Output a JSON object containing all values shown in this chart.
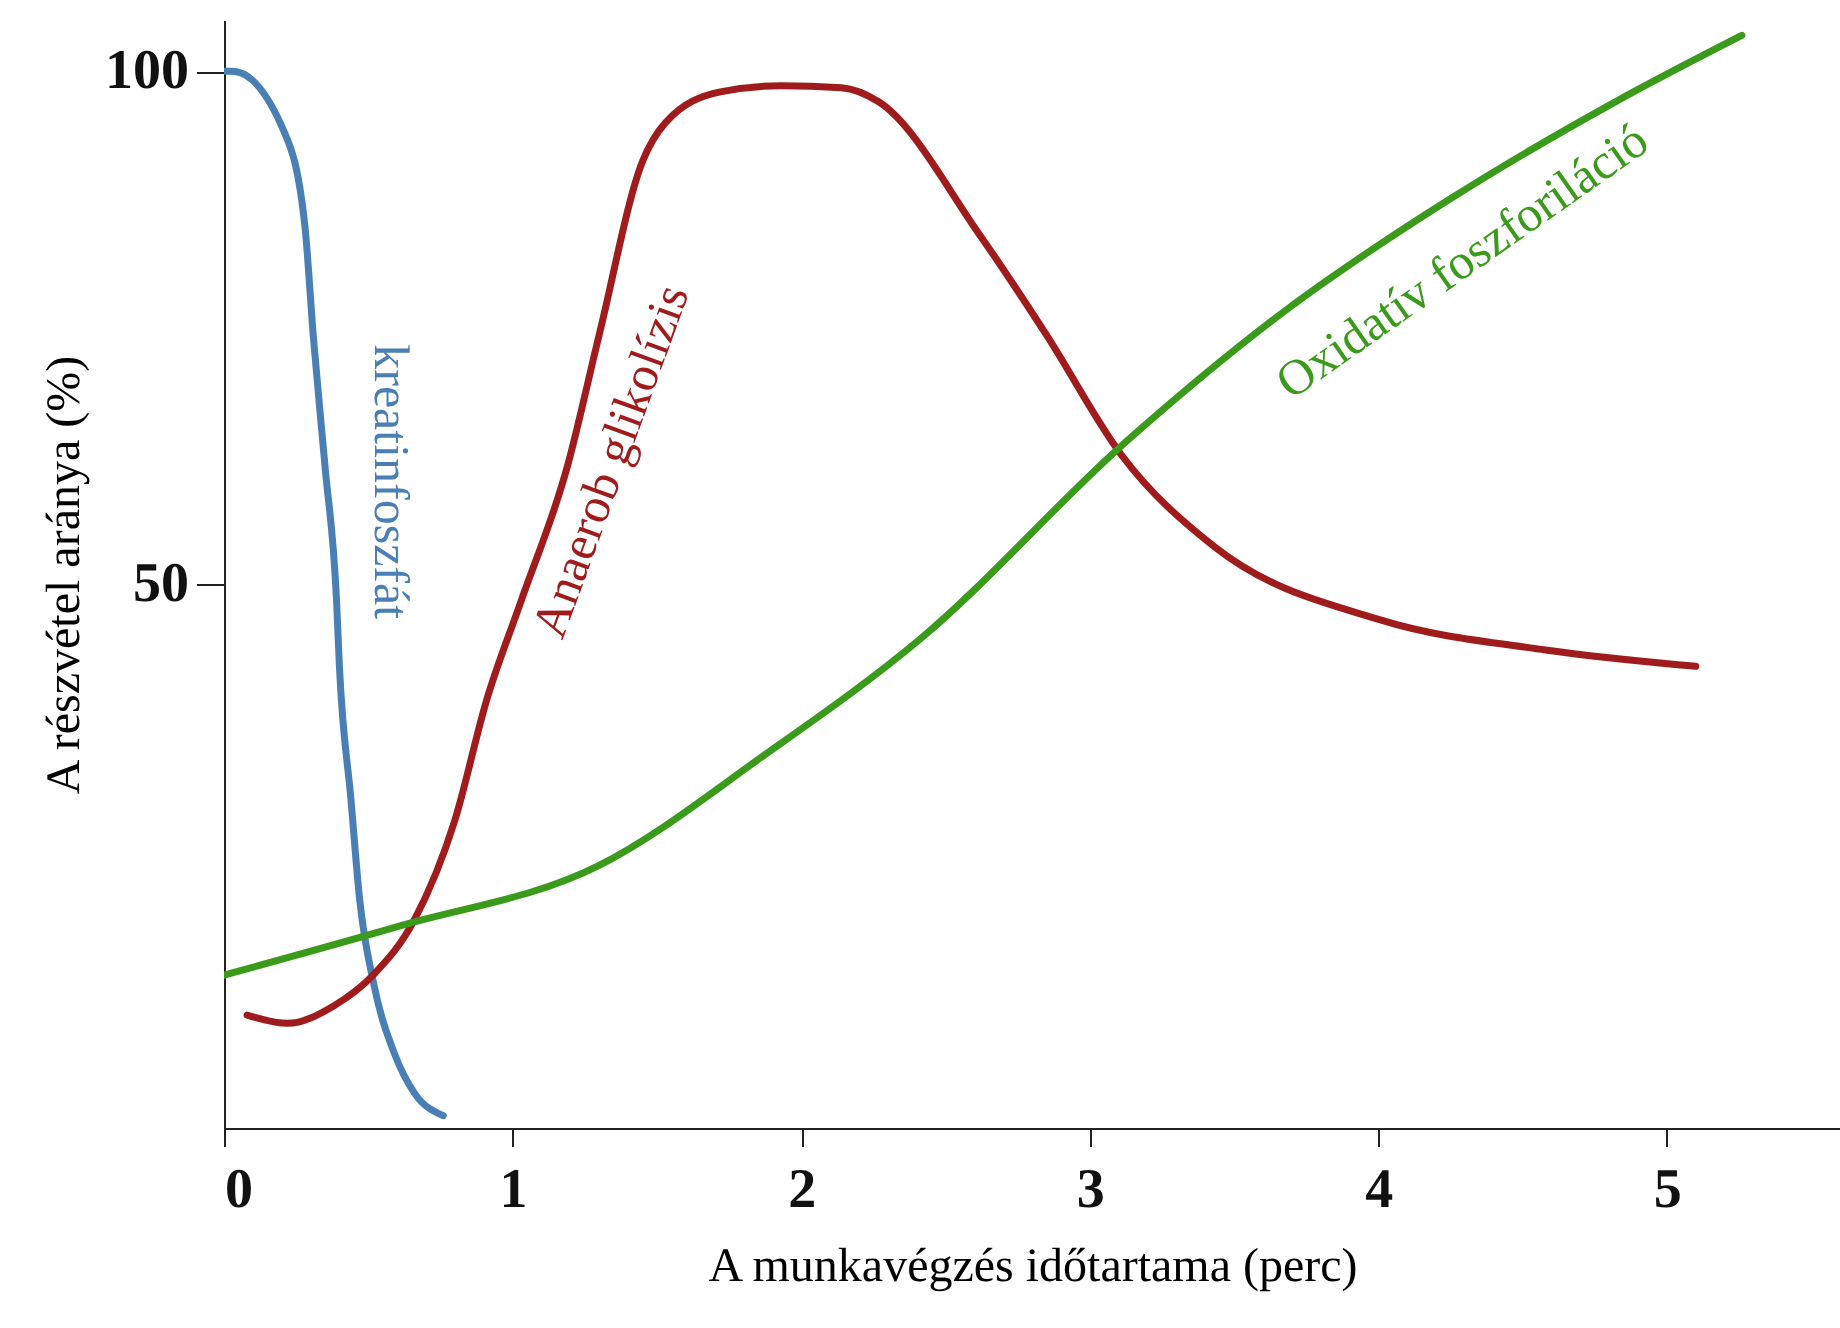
{
  "chart_data": {
    "type": "line",
    "xlabel": "A munkavégzés időtartama (perc)",
    "ylabel": "A részvétel aránya (%)",
    "xlim": [
      0,
      5.6
    ],
    "xticks": [
      0,
      1,
      2,
      3,
      4,
      5
    ],
    "ylim": [
      -3,
      105
    ],
    "yticks": [
      50,
      100
    ],
    "grid": false,
    "marker": "none",
    "line_style": "solid",
    "series": [
      {
        "name": "kreatinfoszfát",
        "color": "#4a7fb5",
        "x": [
          0,
          0.03,
          0.21,
          0.28,
          0.31,
          0.35,
          0.39,
          0.4,
          0.44,
          0.47,
          0.52,
          0.59,
          0.66,
          0.76
        ],
        "values": [
          100,
          100,
          94,
          85,
          74,
          61.5,
          48.4,
          42,
          29,
          19.3,
          10.9,
          4.3,
          0.4,
          -1.8
        ]
      },
      {
        "name": "Anaerob glikolízis",
        "color": "#a01c1c",
        "x": [
          0.08,
          0.22,
          0.38,
          0.52,
          0.66,
          0.8,
          0.91,
          1.03,
          1.19,
          1.3,
          1.45,
          1.53,
          1.72,
          1.93,
          2.14,
          2.27,
          2.62,
          2.85,
          3.11,
          3.43,
          4.01,
          4.58,
          5.1
        ],
        "values": [
          8,
          7.2,
          8.9,
          12,
          17.3,
          27,
          38.7,
          48.4,
          61.5,
          74.3,
          91.2,
          95,
          98,
          98.6,
          98.4,
          97,
          84,
          74.3,
          62.6,
          53.7,
          46.5,
          43.6,
          42
        ]
      },
      {
        "name": "Oxidatív foszforiláció",
        "color": "#3a9a1a",
        "x": [
          0,
          0.61,
          1.3,
          1.88,
          2.41,
          3.13,
          3.66,
          4.24,
          4.82,
          5.26
        ],
        "values": [
          11.9,
          16.7,
          22.6,
          33.5,
          44.6,
          64,
          76.3,
          87.4,
          97,
          103.5
        ]
      }
    ]
  }
}
